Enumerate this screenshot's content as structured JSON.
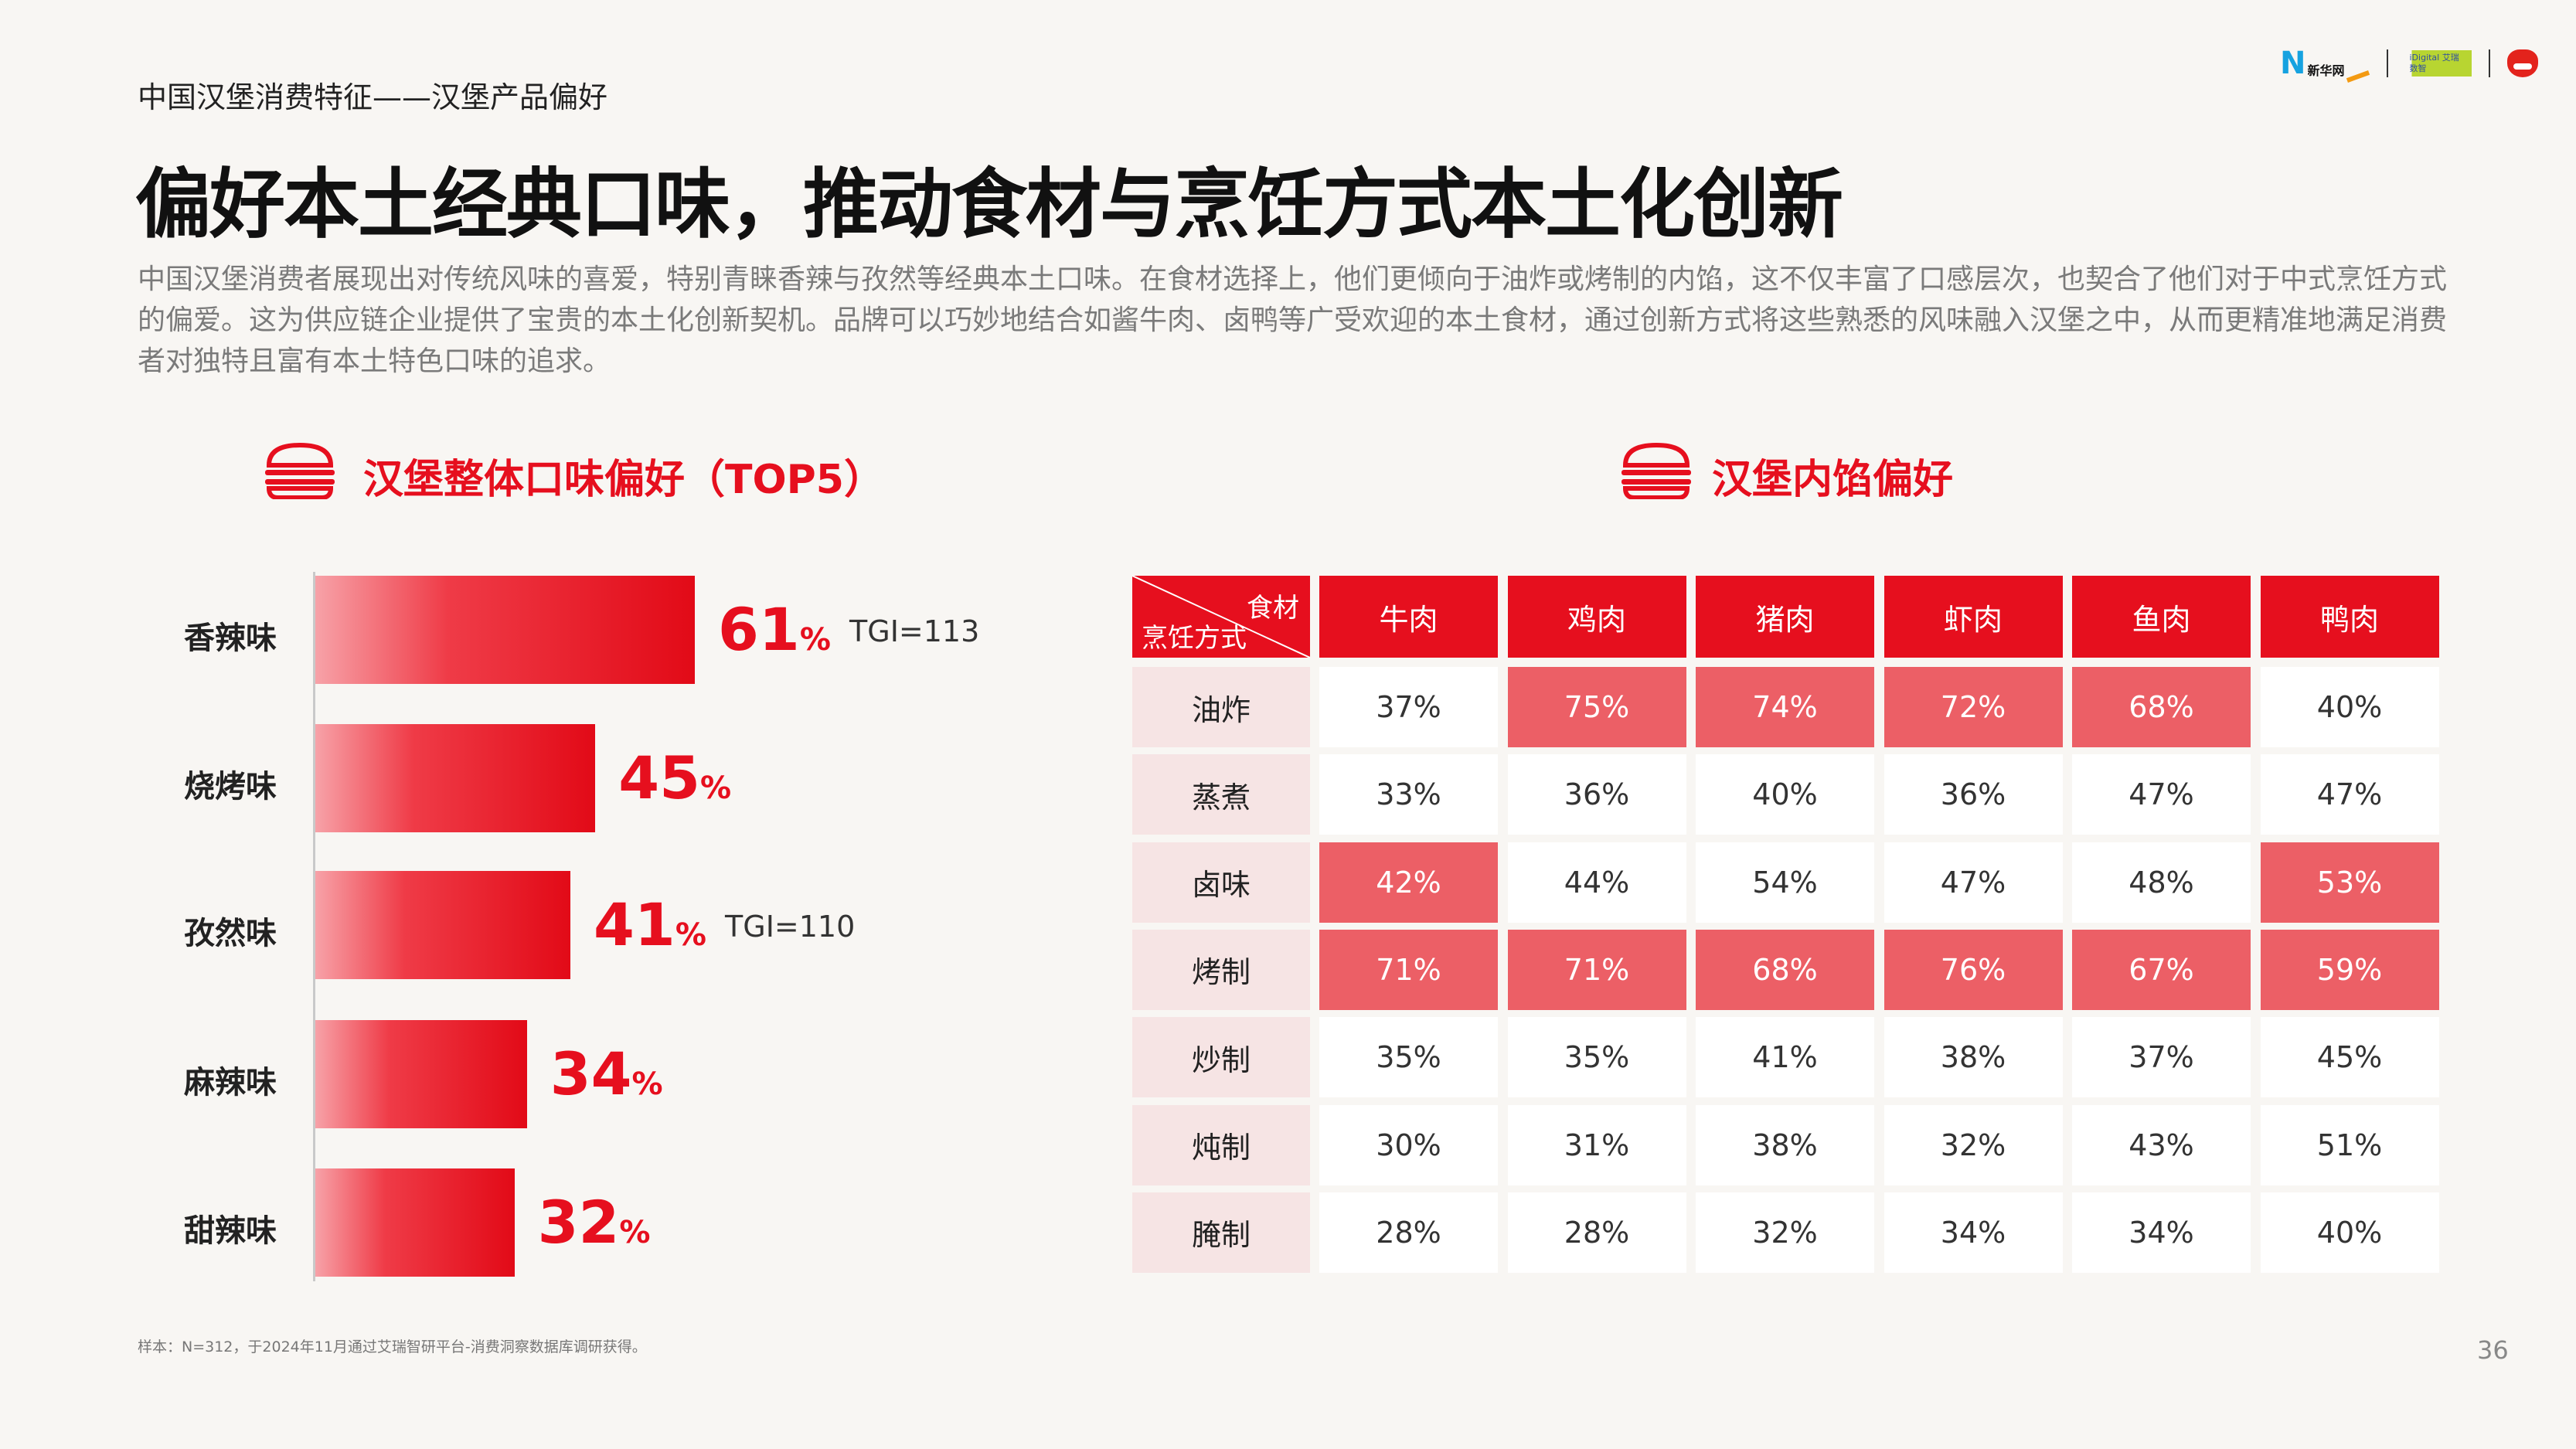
{
  "header": {
    "subtitle": "中国汉堡消费特征——汉堡产品偏好",
    "title": "偏好本土经典口味，推动食材与烹饪方式本土化创新",
    "paragraph": "中国汉堡消费者展现出对传统风味的喜爱，特别青睐香辣与孜然等经典本土口味。在食材选择上，他们更倾向于油炸或烤制的内馅，这不仅丰富了口感层次，也契合了他们对于中式烹饪方式的偏爱。这为供应链企业提供了宝贵的本土化创新契机。品牌可以巧妙地结合如酱牛肉、卤鸭等广受欢迎的本土食材，通过创新方式将这些熟悉的风味融入汉堡之中，从而更精准地满足消费者对独特且富有本土特色口味的追求。"
  },
  "logos": {
    "xinhua": "新华网",
    "idigital": "iDigital 艾瑞数智"
  },
  "left": {
    "heading": "汉堡整体口味偏好（TOP5）"
  },
  "chart_data": {
    "type": "bar",
    "orientation": "horizontal",
    "title": "汉堡整体口味偏好（TOP5）",
    "unit": "%",
    "categories": [
      "香辣味",
      "烧烤味",
      "孜然味",
      "麻辣味",
      "甜辣味"
    ],
    "values": [
      61,
      45,
      41,
      34,
      32
    ],
    "annotations": [
      "TGI=113",
      "",
      "TGI=110",
      "",
      ""
    ]
  },
  "right": {
    "heading": "汉堡内馅偏好",
    "corner_top": "食材",
    "corner_bottom": "烹饪方式",
    "columns": [
      "牛肉",
      "鸡肉",
      "猪肉",
      "虾肉",
      "鱼肉",
      "鸭肉"
    ],
    "rows": [
      {
        "label": "油炸",
        "values": [
          "37%",
          "75%",
          "74%",
          "72%",
          "68%",
          "40%"
        ],
        "highlight": [
          0,
          1,
          1,
          1,
          1,
          0
        ]
      },
      {
        "label": "蒸煮",
        "values": [
          "33%",
          "36%",
          "40%",
          "36%",
          "47%",
          "47%"
        ],
        "highlight": [
          0,
          0,
          0,
          0,
          0,
          0
        ]
      },
      {
        "label": "卤味",
        "values": [
          "42%",
          "44%",
          "54%",
          "47%",
          "48%",
          "53%"
        ],
        "highlight": [
          1,
          0,
          0,
          0,
          0,
          1
        ]
      },
      {
        "label": "烤制",
        "values": [
          "71%",
          "71%",
          "68%",
          "76%",
          "67%",
          "59%"
        ],
        "highlight": [
          1,
          1,
          1,
          1,
          1,
          1
        ]
      },
      {
        "label": "炒制",
        "values": [
          "35%",
          "35%",
          "41%",
          "38%",
          "37%",
          "45%"
        ],
        "highlight": [
          0,
          0,
          0,
          0,
          0,
          0
        ]
      },
      {
        "label": "炖制",
        "values": [
          "30%",
          "31%",
          "38%",
          "32%",
          "43%",
          "51%"
        ],
        "highlight": [
          0,
          0,
          0,
          0,
          0,
          0
        ]
      },
      {
        "label": "腌制",
        "values": [
          "28%",
          "28%",
          "32%",
          "34%",
          "34%",
          "40%"
        ],
        "highlight": [
          0,
          0,
          0,
          0,
          0,
          0
        ]
      }
    ]
  },
  "colors": {
    "accent": "#e60f1e",
    "highlight": "#ec5f66"
  },
  "footer": {
    "note": "样本：N=312，于2024年11月通过艾瑞智研平台-消费洞察数据库调研获得。",
    "page": "36"
  }
}
